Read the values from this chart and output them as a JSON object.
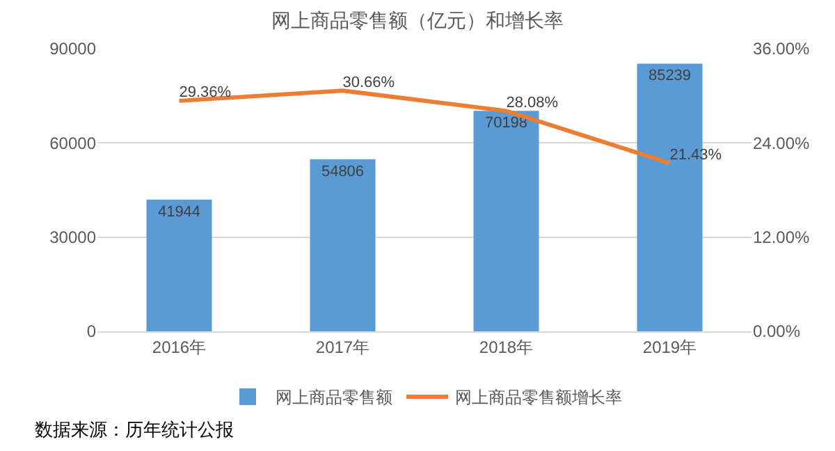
{
  "chart_data": {
    "type": "bar",
    "title": "网上商品零售额（亿元）和增长率",
    "categories": [
      "2016年",
      "2017年",
      "2018年",
      "2019年"
    ],
    "series": [
      {
        "name": "网上商品零售额",
        "color": "#5b9bd5",
        "values": [
          41944,
          54806,
          70198,
          85239
        ]
      },
      {
        "name": "网上商品零售额增长率",
        "type": "line",
        "axis": "y2",
        "color": "#ed7d31",
        "values": [
          29.36,
          30.66,
          28.08,
          21.43
        ],
        "value_labels": [
          "29.36%",
          "30.66%",
          "28.08%",
          "21.43%"
        ]
      }
    ],
    "ylim": [
      0,
      90000
    ],
    "yticks": [
      0,
      30000,
      60000,
      90000
    ],
    "y2lim": [
      0,
      36
    ],
    "y2ticks": [
      {
        "value": 0,
        "label": "0.00%"
      },
      {
        "value": 12,
        "label": "12.00%"
      },
      {
        "value": 24,
        "label": "24.00%"
      },
      {
        "value": 36,
        "label": "36.00%"
      }
    ],
    "data_labels": true,
    "grid": "y",
    "legend": "bottom",
    "marker": "none",
    "line_style": "solid",
    "annotations": [
      "数据来源：历年统计公报"
    ]
  }
}
